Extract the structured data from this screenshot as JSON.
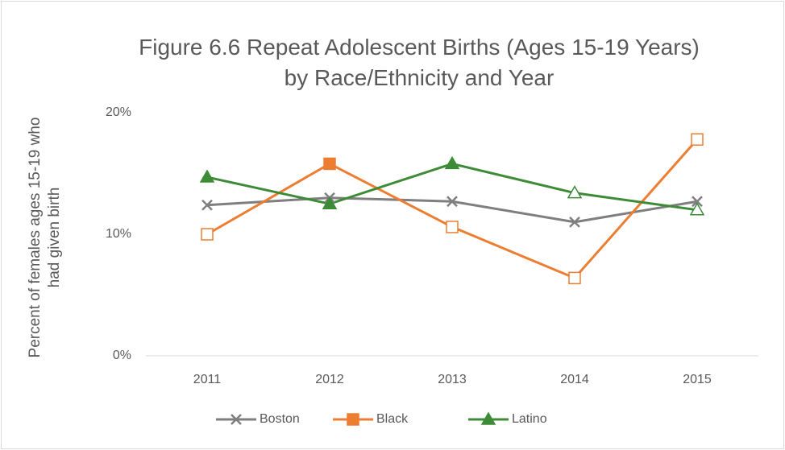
{
  "chart_data": {
    "type": "line",
    "title": "Figure 6.6 Repeat Adolescent Births (Ages 15-19 Years) by Race/Ethnicity and Year",
    "y_label": "Percent of females ages 15-19 who had given birth",
    "categories": [
      "2011",
      "2012",
      "2013",
      "2014",
      "2015"
    ],
    "series": [
      {
        "name": "Boston",
        "color": "#7f7f7f",
        "marker": "x",
        "marker_filled": [
          true,
          true,
          true,
          true,
          true
        ],
        "values": [
          12.4,
          13.0,
          12.7,
          11.0,
          12.7
        ]
      },
      {
        "name": "Black",
        "color": "#ed7d31",
        "marker": "square",
        "marker_filled": [
          false,
          true,
          false,
          false,
          false
        ],
        "values": [
          10.0,
          15.8,
          10.6,
          6.4,
          17.8
        ]
      },
      {
        "name": "Latino",
        "color": "#3d8b37",
        "marker": "triangle",
        "marker_filled": [
          true,
          true,
          true,
          false,
          false
        ],
        "values": [
          14.7,
          12.5,
          15.8,
          13.4,
          12.0
        ]
      }
    ],
    "ylim": [
      0,
      20
    ],
    "yticks": [
      {
        "value": 0,
        "label": "0%"
      },
      {
        "value": 10,
        "label": "10%"
      },
      {
        "value": 20,
        "label": "20%"
      }
    ],
    "grid": false,
    "legend": "bottom"
  }
}
